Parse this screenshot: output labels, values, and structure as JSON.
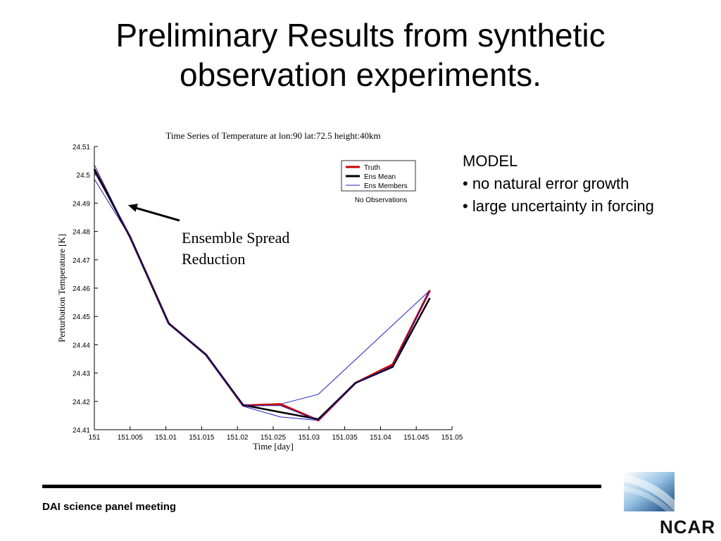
{
  "slide": {
    "title_line1": "Preliminary Results from synthetic",
    "title_line2": "observation experiments.",
    "footer": "DAI science panel meeting",
    "logo_text": "NCAR",
    "notes": {
      "heading": "MODEL",
      "bullets": [
        "• no natural error growth",
        "• large uncertainty in forcing"
      ]
    }
  },
  "chart_data": {
    "type": "line",
    "title": "Time Series of Temperature at lon:90 lat:72.5 height:40km",
    "xlabel": "Time [day]",
    "ylabel": "Perturbation Temperature [K]",
    "xlim": [
      151,
      151.05
    ],
    "ylim": [
      24.41,
      24.51
    ],
    "xticks": [
      "151",
      "151.005",
      "151.01",
      "151.015",
      "151.02",
      "151.025",
      "151.03",
      "151.035",
      "151.04",
      "151.045",
      "151.05"
    ],
    "yticks": [
      "24.51",
      "24.5",
      "24.49",
      "24.48",
      "24.47",
      "24.46",
      "24.45",
      "24.44",
      "24.43",
      "24.42",
      "24.41"
    ],
    "annotation": {
      "text_line1": "Ensemble Spread",
      "text_line2": "Reduction",
      "arrow_to": [
        151.0047,
        24.4893
      ]
    },
    "legend": {
      "position": "top-right",
      "note": "No Observations"
    },
    "colors": {
      "truth": "#cc0000",
      "mean": "#000000",
      "members": "#1f1fbf"
    },
    "series": [
      {
        "name": "Truth",
        "x": [
          151,
          151.005,
          151.0104,
          151.0156,
          151.0208,
          151.026,
          151.0313,
          151.0365,
          151.0417,
          151.0469
        ],
        "y": [
          24.502,
          24.478,
          24.4475,
          24.4365,
          24.4185,
          24.419,
          24.4133,
          24.4265,
          24.433,
          24.4592
        ]
      },
      {
        "name": "Ens Mean",
        "x": [
          151,
          151.005,
          151.0104,
          151.0156,
          151.0208,
          151.026,
          151.0313,
          151.0365,
          151.0417,
          151.0469
        ],
        "y": [
          24.502,
          24.478,
          24.4475,
          24.4365,
          24.4187,
          24.4162,
          24.4137,
          24.4265,
          24.4322,
          24.4565
        ]
      },
      {
        "name": "Ens Members",
        "x": [
          151,
          151.005,
          151.0104,
          151.0156,
          151.0208,
          151.026,
          151.0313,
          151.0365,
          151.0417,
          151.0469
        ],
        "y": [
          24.5035,
          24.478,
          24.4475,
          24.4365,
          24.4185,
          24.4185,
          24.4133,
          24.4265,
          24.4325,
          24.459
        ]
      },
      {
        "name": "",
        "x": [
          151,
          151.005,
          151.0104,
          151.0156,
          151.0208,
          151.026,
          151.0313,
          151.0365,
          151.0417,
          151.0469
        ],
        "y": [
          24.501,
          24.4785,
          24.4475,
          24.4365,
          24.4183,
          24.4145,
          24.4133,
          24.4265,
          24.4322,
          24.459
        ]
      },
      {
        "name": "",
        "x": [
          151,
          151.005,
          151.0104,
          151.0156,
          151.0208,
          151.026,
          151.0313,
          151.0469
        ],
        "y": [
          24.4985,
          24.478,
          24.4475,
          24.4365,
          24.4188,
          24.419,
          24.4225,
          24.4592
        ]
      }
    ]
  }
}
